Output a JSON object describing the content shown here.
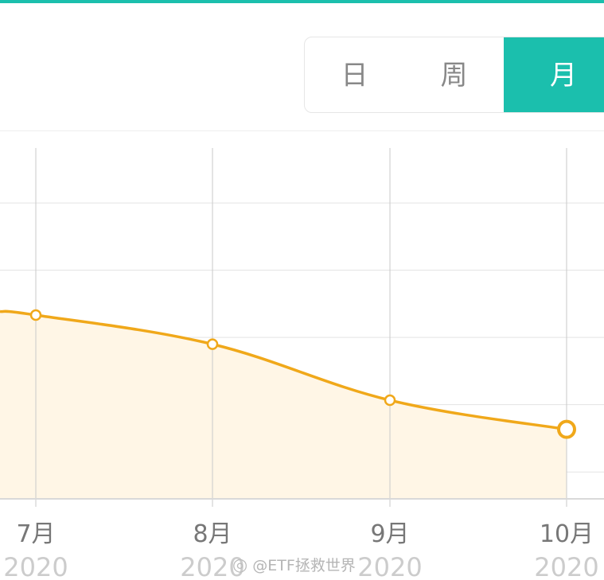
{
  "theme": {
    "accent": "#1bbfad",
    "line_color": "#f0a81a",
    "fill_color": "#fff6e6",
    "grid_color": "#e3e3e3",
    "axis_color": "#d9d9d9",
    "month_label_color": "#777777",
    "year_label_color": "#cccccc"
  },
  "tabs": [
    {
      "label": "日",
      "active": false
    },
    {
      "label": "周",
      "active": false
    },
    {
      "label": "月",
      "active": true
    }
  ],
  "watermark": {
    "icon": "weibo-icon",
    "text": "@ETF拯救世界"
  },
  "chart_data": {
    "type": "area",
    "x": [
      "7月",
      "8月",
      "9月",
      "10月"
    ],
    "x_sub": [
      "2020",
      "2020",
      "2020",
      "2020"
    ],
    "series": [
      {
        "values": [
          4.1,
          3.45,
          2.2,
          1.55
        ]
      }
    ],
    "leading_value": 4.18,
    "ylim": [
      0,
      8.2
    ],
    "y_gridlines": [
      0.6,
      2.1,
      3.6,
      5.1,
      6.6
    ],
    "grid": true,
    "highlight_last_point": true
  }
}
